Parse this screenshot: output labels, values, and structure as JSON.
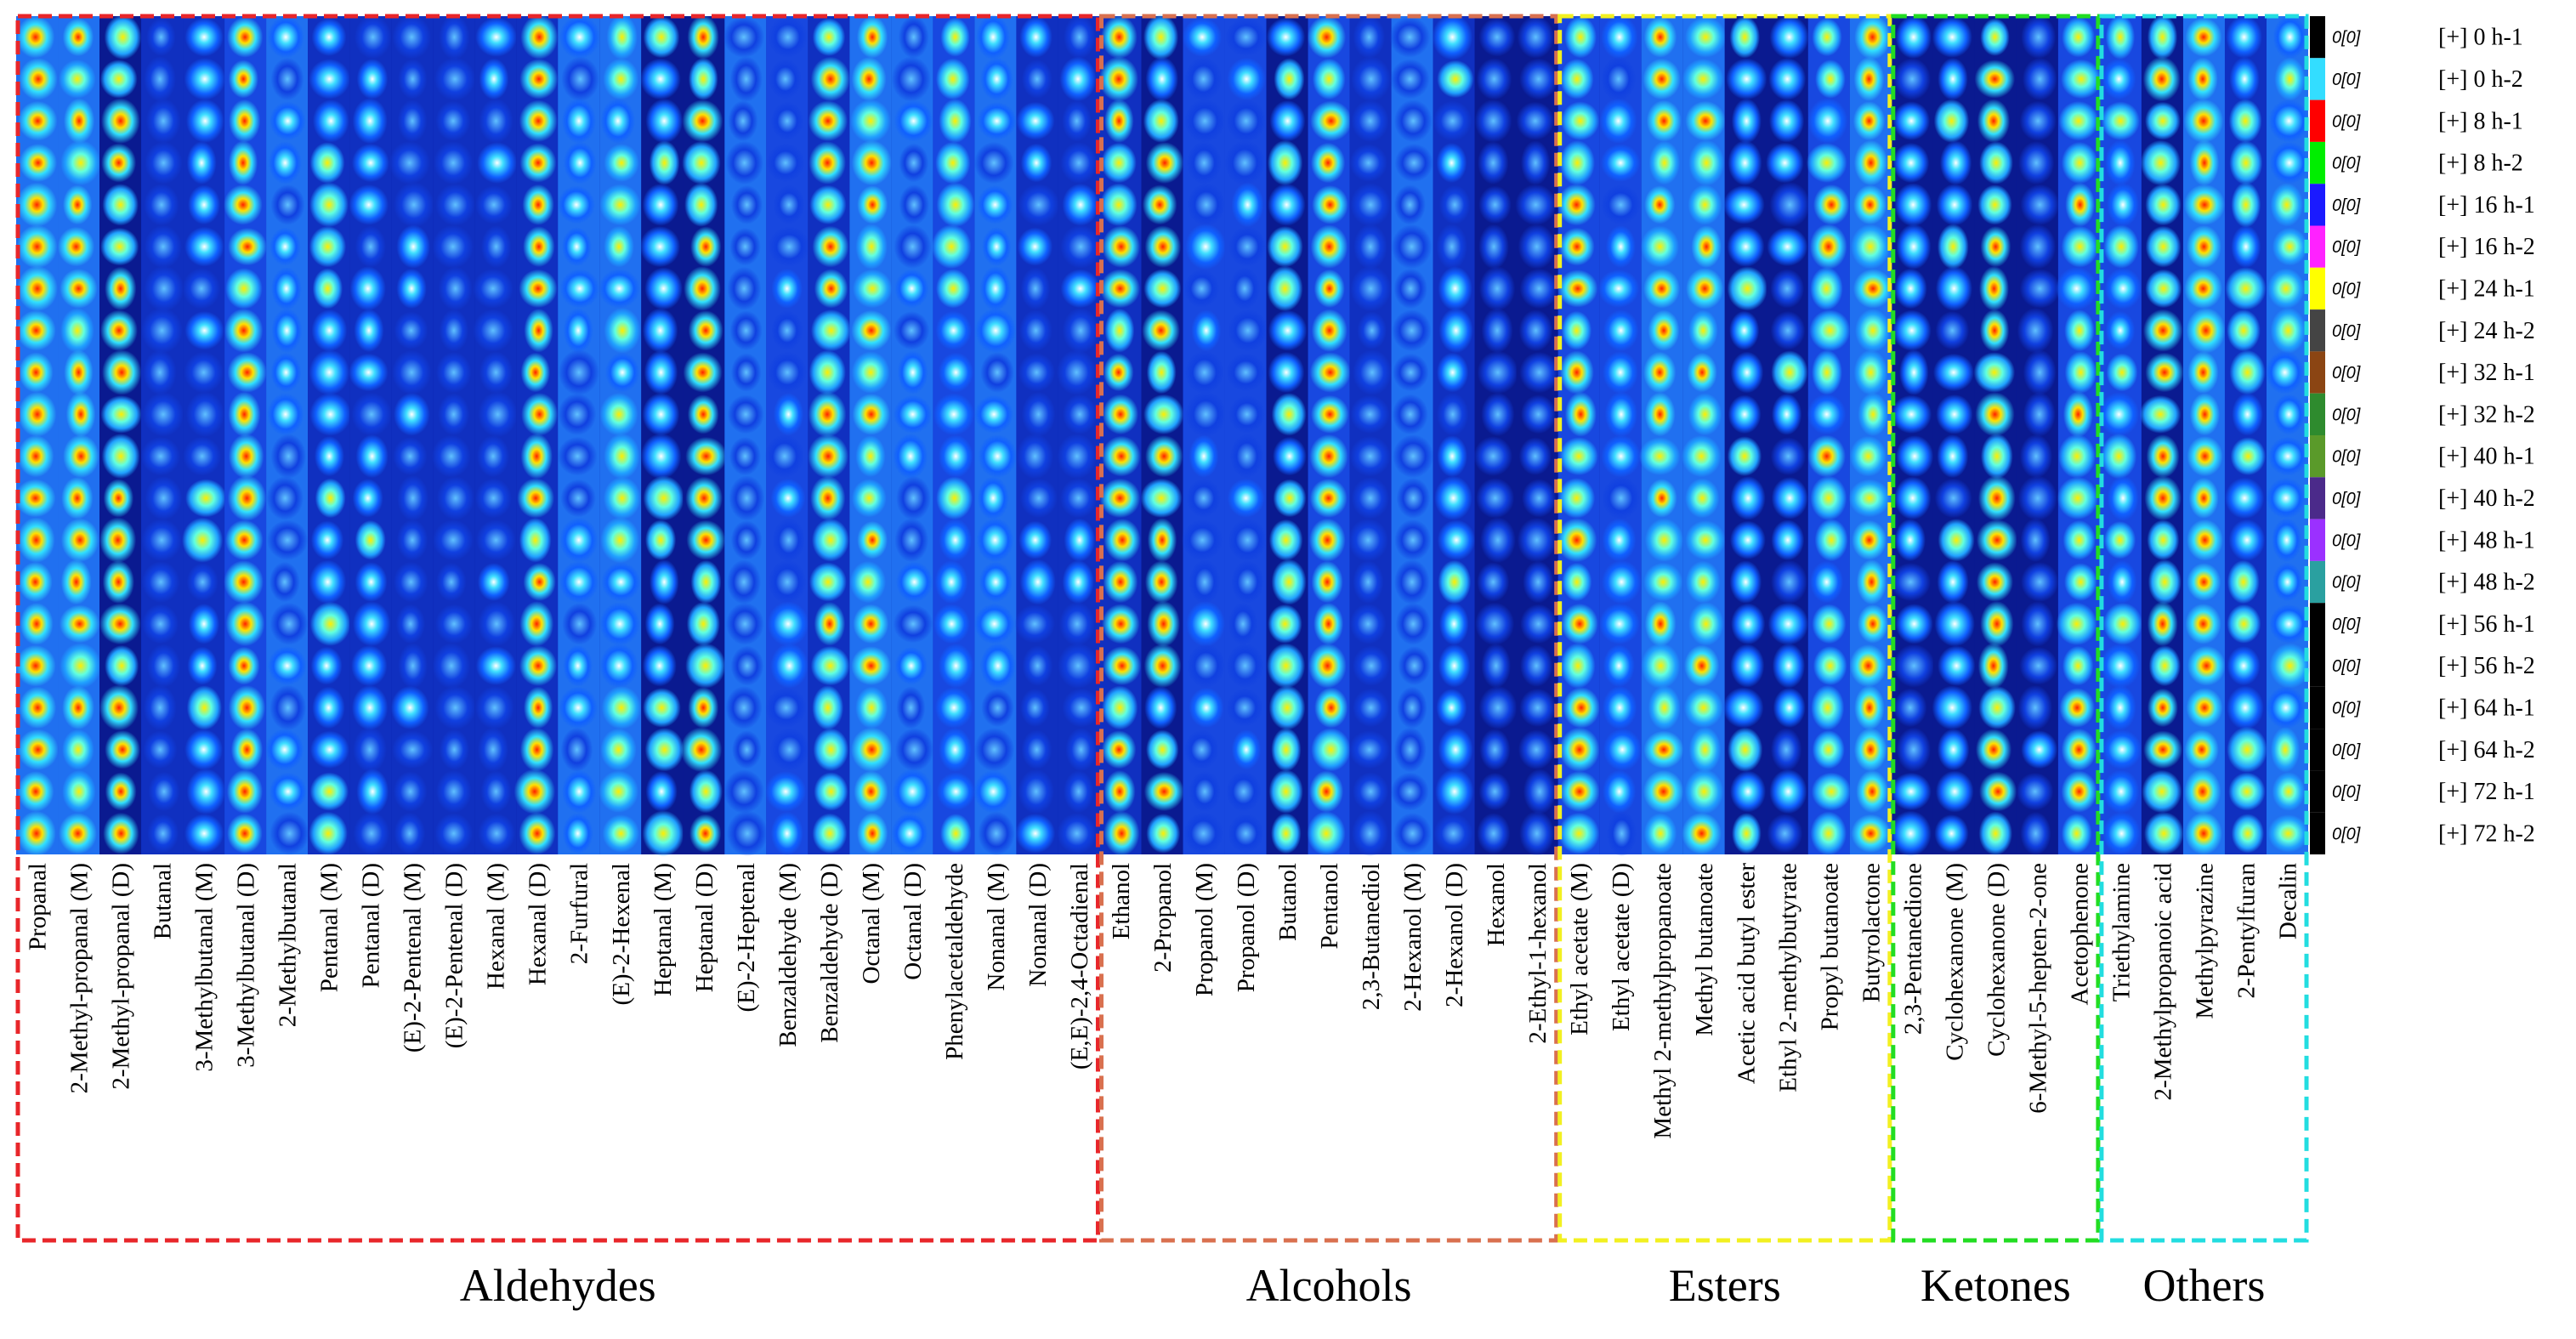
{
  "groups": [
    {
      "name": "Aldehydes",
      "color": "#e8262a",
      "columns": [
        "Propanal",
        "2-Methyl-propanal (M)",
        "2-Methyl-propanal (D)",
        "Butanal",
        "3-Methylbutanal (M)",
        "3-Methylbutanal (D)",
        "2-Methylbutanal",
        "Pentanal (M)",
        "Pentanal (D)",
        "(E)-2-Pentenal (M)",
        "(E)-2-Pentenal (D)",
        "Hexanal (M)",
        "Hexanal (D)",
        "2-Furfural",
        "(E)-2-Hexenal",
        "Heptanal (M)",
        "Heptanal (D)",
        "(E)-2-Heptenal",
        "Benzaldehyde (M)",
        "Benzaldehyde (D)",
        "Octanal  (M)",
        "Octanal  (D)",
        "Phenylacetaldehyde",
        "Nonanal (M)",
        "Nonanal (D)",
        "(E,E)-2,4-Octadienal"
      ]
    },
    {
      "name": "Alcohols",
      "color": "#d9704f",
      "columns": [
        "Ethanol",
        "2-Propanol",
        "Propanol (M)",
        "Propanol (D)",
        "Butanol",
        "Pentanol",
        "2,3-Butanediol",
        "2-Hexanol (M)",
        "2-Hexanol (D)",
        "Hexanol",
        "2-Ethyl-1-hexanol"
      ]
    },
    {
      "name": "Esters",
      "color": "#f2f020",
      "columns": [
        "Ethyl acetate (M)",
        "Ethyl acetate (D)",
        "Methyl 2-methylpropanoate",
        "Methyl butanoate",
        "Acetic acid butyl ester",
        "Ethyl 2-methylbutyrate",
        "Propyl butanoate",
        "Butyrolactone"
      ]
    },
    {
      "name": "Ketones",
      "color": "#22dd22",
      "columns": [
        "2,3-Pentanedione",
        "Cyclohexanone (M)",
        "Cyclohexanone (D)",
        "6-Methyl-5-hepten-2-one",
        "Acetophenone"
      ]
    },
    {
      "name": "Others",
      "color": "#22dde0",
      "columns": [
        "Triethylamine",
        "2-Methylpropanoic acid",
        "Methylpyrazine",
        "2-Pentylfuran",
        "Decalin"
      ]
    }
  ],
  "rows": [
    {
      "tag": "0[0]",
      "label": "[+] 0 h-1",
      "color": "#000000"
    },
    {
      "tag": "0[0]",
      "label": "[+] 0 h-2",
      "color": "#33ddff"
    },
    {
      "tag": "0[0]",
      "label": "[+] 8 h-1",
      "color": "#ff0000"
    },
    {
      "tag": "0[0]",
      "label": "[+] 8 h-2",
      "color": "#00ee00"
    },
    {
      "tag": "0[0]",
      "label": "[+] 16 h-1",
      "color": "#1a1aff"
    },
    {
      "tag": "0[0]",
      "label": "[+] 16 h-2",
      "color": "#ff22ff"
    },
    {
      "tag": "0[0]",
      "label": "[+] 24 h-1",
      "color": "#ffff00"
    },
    {
      "tag": "0[0]",
      "label": "[+] 24 h-2",
      "color": "#444444"
    },
    {
      "tag": "0[0]",
      "label": "[+] 32 h-1",
      "color": "#8b4513"
    },
    {
      "tag": "0[0]",
      "label": "[+] 32 h-2",
      "color": "#2e8b2e"
    },
    {
      "tag": "0[0]",
      "label": "[+] 40 h-1",
      "color": "#5a9a2a"
    },
    {
      "tag": "0[0]",
      "label": "[+] 40 h-2",
      "color": "#4b2a8a"
    },
    {
      "tag": "0[0]",
      "label": "[+] 48 h-1",
      "color": "#9b30ff"
    },
    {
      "tag": "0[0]",
      "label": "[+] 48 h-2",
      "color": "#2aa0a0"
    },
    {
      "tag": "0[0]",
      "label": "[+] 56 h-1",
      "color": "#000000"
    },
    {
      "tag": "0[0]",
      "label": "[+] 56 h-2",
      "color": "#000000"
    },
    {
      "tag": "0[0]",
      "label": "[+] 64 h-1",
      "color": "#000000"
    },
    {
      "tag": "0[0]",
      "label": "[+] 64 h-2",
      "color": "#000000"
    },
    {
      "tag": "0[0]",
      "label": "[+] 72 h-1",
      "color": "#000000"
    },
    {
      "tag": "0[0]",
      "label": "[+] 72 h-2",
      "color": "#000000"
    }
  ]
}
